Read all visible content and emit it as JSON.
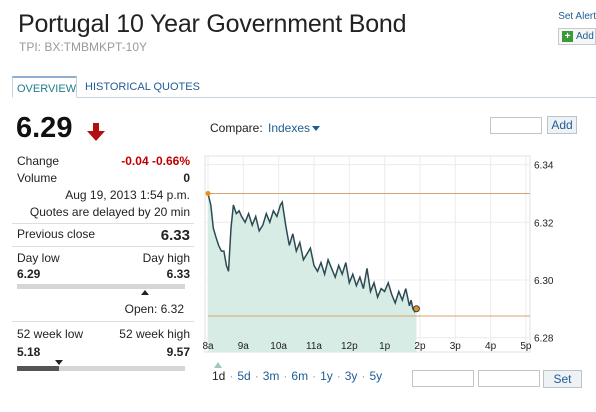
{
  "header": {
    "title": "Portugal 10 Year Government Bond",
    "subtitle": "TPI: BX:TMBMKPT-10Y",
    "set_alert": "Set Alert",
    "add_label": "Add"
  },
  "tabs": [
    {
      "label": "OVERVIEW",
      "active": true
    },
    {
      "label": "HISTORICAL QUOTES",
      "active": false
    }
  ],
  "quote": {
    "price": "6.29",
    "direction": "down",
    "change_label": "Change",
    "change_value": "-0.04",
    "change_pct": "-0.66%",
    "volume_label": "Volume",
    "volume_value": "0",
    "timestamp": "Aug 19, 2013 1:54 p.m.",
    "delay_note": "Quotes are delayed by 20 min",
    "prev_close_label": "Previous close",
    "prev_close_value": "6.33",
    "day_low_label": "Day low",
    "day_high_label": "Day high",
    "day_low": "6.29",
    "day_high": "6.33",
    "day_marker_fraction": 0.76,
    "open_label": "Open: 6.32",
    "wk52_low_label": "52 week low",
    "wk52_high_label": "52 week high",
    "wk52_low": "5.18",
    "wk52_high": "9.57",
    "wk52_fill_fraction": 0.25
  },
  "compare": {
    "label": "Compare:",
    "selected": "Indexes",
    "add_button": "Add",
    "set_button": "Set"
  },
  "time_ranges": [
    "1d",
    "5d",
    "3m",
    "6m",
    "1y",
    "3y",
    "5y"
  ],
  "colors": {
    "link": "#1e5c94",
    "negative": "#c00000",
    "chart_fill": "#d8ece6",
    "chart_line": "#2c4a52",
    "reference_line": "#d4a373",
    "marker": "#e8901a"
  },
  "chart_data": {
    "type": "line",
    "x_ticks": [
      "8a",
      "9a",
      "10a",
      "11a",
      "12p",
      "1p",
      "2p",
      "3p",
      "4p",
      "5p"
    ],
    "y_ticks": [
      "6.34",
      "6.32",
      "6.30",
      "6.28"
    ],
    "ylim": [
      6.275,
      6.343
    ],
    "xlim": [
      8,
      17.2
    ],
    "reference_levels": [
      6.33,
      6.2875
    ],
    "series": [
      {
        "x": [
          8.0,
          8.08,
          8.15,
          8.22,
          8.3,
          8.38,
          8.45,
          8.52,
          8.58,
          8.65,
          8.72,
          8.8,
          8.88,
          8.95,
          9.05,
          9.15,
          9.25,
          9.35,
          9.45,
          9.55,
          9.65,
          9.75,
          9.85,
          9.95,
          10.05,
          10.1,
          10.2,
          10.3,
          10.4,
          10.5,
          10.6,
          10.7,
          10.8,
          10.9,
          11.0,
          11.1,
          11.2,
          11.3,
          11.4,
          11.5,
          11.6,
          11.7,
          11.8,
          11.9,
          12.0,
          12.1,
          12.2,
          12.3,
          12.4,
          12.5,
          12.6,
          12.7,
          12.8,
          12.9,
          13.0,
          13.1,
          13.2,
          13.3,
          13.4,
          13.5,
          13.6,
          13.7,
          13.75,
          13.8,
          13.85,
          13.9
        ],
        "y": [
          6.33,
          6.326,
          6.318,
          6.315,
          6.312,
          6.31,
          6.31,
          6.305,
          6.303,
          6.318,
          6.326,
          6.323,
          6.324,
          6.322,
          6.32,
          6.323,
          6.319,
          6.322,
          6.317,
          6.319,
          6.323,
          6.32,
          6.324,
          6.322,
          6.326,
          6.327,
          6.319,
          6.312,
          6.316,
          6.31,
          6.313,
          6.307,
          6.309,
          6.311,
          6.305,
          6.303,
          6.306,
          6.302,
          6.307,
          6.304,
          6.301,
          6.305,
          6.302,
          6.306,
          6.299,
          6.302,
          6.298,
          6.301,
          6.297,
          6.304,
          6.296,
          6.299,
          6.294,
          6.297,
          6.296,
          6.299,
          6.295,
          6.292,
          6.296,
          6.293,
          6.297,
          6.291,
          6.293,
          6.29,
          6.289,
          6.29
        ]
      }
    ]
  }
}
